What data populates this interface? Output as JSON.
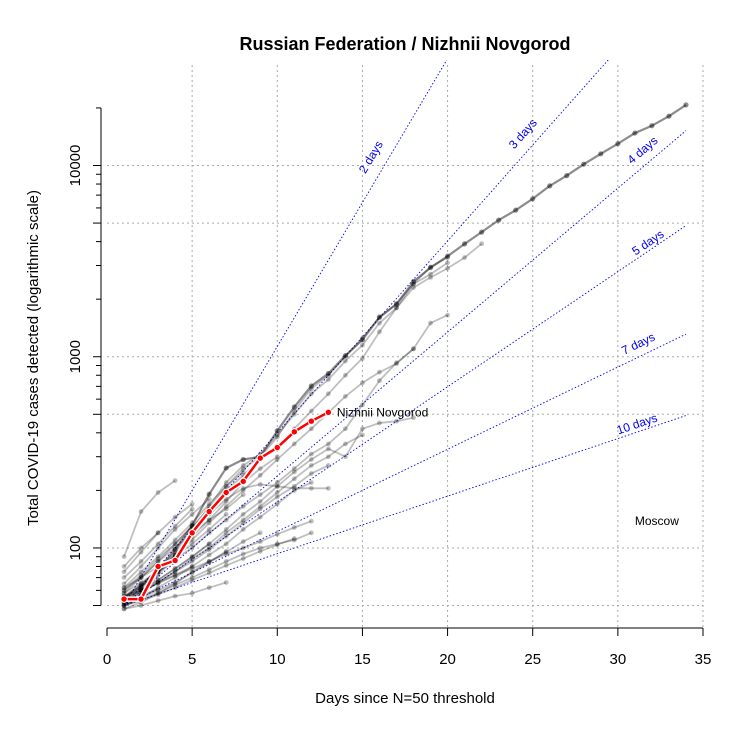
{
  "chart_data": {
    "type": "line",
    "title": "Russian Federation / Nizhnii Novgorod",
    "xlabel": "Days since N=50 threshold",
    "ylabel": "Total COVID-19 cases detected (logarithmic scale)",
    "y_scale": "log",
    "xlim": [
      0,
      35
    ],
    "ylim": [
      42,
      28000
    ],
    "x_ticks": [
      0,
      5,
      10,
      15,
      20,
      25,
      30,
      35
    ],
    "y_ticks": [
      100,
      1000,
      10000
    ],
    "grid": true,
    "highlight_color": "#ff0000",
    "other_color": "#000000",
    "reference_color": "#0000ee",
    "highlight": {
      "name": "Nizhnii Novgorod",
      "x": [
        1,
        2,
        3,
        4,
        5,
        6,
        7,
        8,
        9,
        10,
        11,
        12,
        13
      ],
      "y": [
        54,
        54,
        80,
        86,
        120,
        155,
        195,
        223,
        295,
        335,
        405,
        460,
        512
      ]
    },
    "moscow": {
      "name": "Moscow",
      "x": [
        1,
        2,
        3,
        4,
        5,
        6,
        7,
        8,
        9,
        10,
        11,
        12,
        13,
        14,
        15,
        16,
        17,
        18,
        19,
        20,
        21,
        22,
        23,
        24,
        25,
        26,
        27,
        28,
        29,
        30,
        31,
        32,
        33,
        34
      ],
      "y": [
        55,
        63,
        77,
        98,
        131,
        191,
        262,
        290,
        300,
        410,
        546,
        703,
        817,
        1014,
        1226,
        1613,
        1880,
        2475,
        2923,
        3357,
        3893,
        4484,
        5181,
        5841,
        6698,
        7822,
        8852,
        10158,
        11513,
        13002,
        14776,
        16146,
        18105,
        20754
      ]
    },
    "others": [
      {
        "x": [
          1,
          2,
          3,
          4,
          5,
          6,
          7,
          8,
          9,
          10,
          11,
          12,
          13,
          14,
          15,
          16,
          17,
          18,
          19,
          20
        ],
        "y": [
          52,
          60,
          72,
          90,
          120,
          160,
          210,
          260,
          300,
          380,
          520,
          680,
          800,
          1000,
          1250,
          1600,
          1900,
          2400,
          2700,
          3100
        ]
      },
      {
        "x": [
          1,
          2,
          3,
          4,
          5,
          6,
          7,
          8,
          9,
          10,
          11,
          12,
          13,
          14,
          15,
          16,
          17,
          18,
          19,
          20,
          21,
          22
        ],
        "y": [
          56,
          64,
          78,
          95,
          125,
          165,
          220,
          270,
          310,
          390,
          500,
          640,
          760,
          950,
          1150,
          1500,
          1800,
          2300,
          2600,
          2900,
          3300,
          3900
        ]
      },
      {
        "x": [
          1,
          2,
          3,
          4,
          5,
          6,
          7,
          8,
          9,
          10,
          11,
          12,
          13,
          14,
          15,
          16,
          17,
          18,
          19,
          20
        ],
        "y": [
          60,
          70,
          85,
          105,
          130,
          160,
          200,
          240,
          290,
          340,
          420,
          520,
          640,
          800,
          980,
          1350,
          1800,
          2400,
          2950,
          3300
        ]
      },
      {
        "x": [
          1,
          2,
          3,
          4,
          5,
          6,
          7,
          8,
          9,
          10,
          11,
          12,
          13,
          14,
          15,
          16,
          17,
          18,
          19,
          20
        ],
        "y": [
          54,
          62,
          75,
          92,
          110,
          135,
          165,
          200,
          240,
          290,
          350,
          420,
          510,
          620,
          730,
          830,
          920,
          1100,
          1500,
          1650
        ]
      },
      {
        "x": [
          1,
          2,
          3,
          4,
          5,
          6,
          7,
          8,
          9,
          10,
          11,
          12,
          13,
          14,
          15,
          16,
          17,
          18
        ],
        "y": [
          55,
          65,
          75,
          88,
          100,
          120,
          140,
          165,
          190,
          220,
          260,
          310,
          350,
          420,
          560,
          750,
          930,
          1100
        ]
      },
      {
        "x": [
          1,
          2,
          3,
          4,
          5,
          6,
          7,
          8,
          9,
          10,
          11,
          12,
          13,
          14,
          15,
          16,
          17,
          18
        ],
        "y": [
          52,
          60,
          68,
          78,
          90,
          105,
          125,
          150,
          175,
          210,
          250,
          290,
          330,
          300,
          420,
          450,
          460,
          480
        ]
      },
      {
        "x": [
          1,
          2,
          3,
          4,
          5,
          6,
          7,
          8,
          9,
          10,
          11,
          12,
          13,
          14,
          15
        ],
        "y": [
          53,
          58,
          66,
          75,
          88,
          100,
          120,
          140,
          165,
          195,
          230,
          270,
          300,
          350,
          390
        ]
      },
      {
        "x": [
          1,
          2,
          3,
          4,
          5,
          6,
          7,
          8,
          9,
          10,
          11,
          12,
          13
        ],
        "y": [
          60,
          72,
          88,
          105,
          130,
          150,
          180,
          205,
          215,
          210,
          205,
          205,
          205
        ]
      },
      {
        "x": [
          1,
          2,
          3,
          4,
          5,
          6,
          7,
          8,
          9,
          10,
          11,
          12,
          13
        ],
        "y": [
          52,
          58,
          66,
          75,
          85,
          98,
          115,
          135,
          160,
          185,
          210,
          245,
          270
        ]
      },
      {
        "x": [
          1,
          2,
          3,
          4,
          5,
          6,
          7,
          8,
          9,
          10,
          11,
          12
        ],
        "y": [
          50,
          55,
          62,
          70,
          80,
          92,
          105,
          125,
          145,
          170,
          200,
          220
        ]
      },
      {
        "x": [
          1,
          2,
          3,
          4,
          5,
          6,
          7,
          8,
          9,
          10,
          11,
          12
        ],
        "y": [
          55,
          60,
          66,
          72,
          78,
          85,
          93,
          100,
          108,
          118,
          128,
          138
        ]
      },
      {
        "x": [
          1,
          2,
          3,
          4,
          5,
          6,
          7,
          8,
          9,
          10,
          11,
          12
        ],
        "y": [
          50,
          54,
          58,
          64,
          70,
          77,
          85,
          93,
          100,
          105,
          110,
          120
        ]
      },
      {
        "x": [
          1,
          2,
          3,
          4,
          5,
          6,
          7,
          8,
          9,
          10,
          11
        ],
        "y": [
          50,
          53,
          57,
          62,
          68,
          74,
          81,
          88,
          96,
          104,
          112
        ]
      },
      {
        "x": [
          1,
          2,
          3,
          4,
          5,
          6,
          7,
          8,
          9,
          10
        ],
        "y": [
          55,
          63,
          75,
          92,
          115,
          140,
          175,
          220,
          260,
          300
        ]
      },
      {
        "x": [
          1,
          2,
          3,
          4,
          5,
          6,
          7,
          8,
          9
        ],
        "y": [
          48,
          52,
          58,
          65,
          75,
          85,
          95,
          108,
          120
        ]
      },
      {
        "x": [
          1,
          2,
          3,
          4,
          5,
          6,
          7,
          8
        ],
        "y": [
          62,
          75,
          90,
          110,
          135,
          170,
          210,
          250
        ]
      },
      {
        "x": [
          1,
          2,
          3,
          4,
          5,
          6,
          7,
          8
        ],
        "y": [
          58,
          70,
          85,
          100,
          120,
          140,
          160,
          190
        ]
      },
      {
        "x": [
          1,
          2,
          3,
          4,
          5,
          6,
          7
        ],
        "y": [
          52,
          62,
          75,
          90,
          105,
          125,
          150
        ]
      },
      {
        "x": [
          1,
          2,
          3,
          4,
          5,
          6,
          7
        ],
        "y": [
          50,
          55,
          60,
          66,
          74,
          84,
          96
        ]
      },
      {
        "x": [
          1,
          2,
          3,
          4,
          5,
          6
        ],
        "y": [
          54,
          60,
          68,
          78,
          90,
          105
        ]
      },
      {
        "x": [
          1,
          2,
          3,
          4,
          5,
          6
        ],
        "y": [
          65,
          80,
          100,
          125,
          150,
          180
        ]
      },
      {
        "x": [
          1,
          2,
          3,
          4,
          5
        ],
        "y": [
          70,
          85,
          105,
          130,
          160
        ]
      },
      {
        "x": [
          1,
          2,
          3,
          4,
          5
        ],
        "y": [
          56,
          60,
          65,
          72,
          80
        ]
      },
      {
        "x": [
          1,
          2,
          3,
          4,
          5
        ],
        "y": [
          75,
          95,
          120,
          145,
          170
        ]
      },
      {
        "x": [
          1,
          2,
          3,
          4
        ],
        "y": [
          90,
          155,
          195,
          225
        ]
      },
      {
        "x": [
          1,
          2,
          3,
          4
        ],
        "y": [
          58,
          66,
          75,
          85
        ]
      },
      {
        "x": [
          1,
          2,
          3,
          4
        ],
        "y": [
          62,
          70,
          80,
          92
        ]
      },
      {
        "x": [
          1,
          2,
          3
        ],
        "y": [
          51,
          56,
          61
        ]
      },
      {
        "x": [
          1,
          2,
          3
        ],
        "y": [
          80,
          100,
          120
        ]
      },
      {
        "x": [
          1,
          2,
          3,
          4,
          5,
          6,
          7
        ],
        "y": [
          48,
          50,
          53,
          56,
          58,
          62,
          66
        ]
      }
    ],
    "reference_lines": [
      {
        "label": "2 days",
        "doubling_days": 2,
        "label_x": 15.7,
        "label_y": 10800
      },
      {
        "label": "3 days",
        "doubling_days": 3,
        "label_x": 24.6,
        "label_y": 14200
      },
      {
        "label": "4 days",
        "doubling_days": 4,
        "label_x": 31.6,
        "label_y": 11600
      },
      {
        "label": "5 days",
        "doubling_days": 5,
        "label_x": 31.9,
        "label_y": 3800
      },
      {
        "label": "7 days",
        "doubling_days": 7,
        "label_x": 31.3,
        "label_y": 1120
      },
      {
        "label": "10 days",
        "doubling_days": 10,
        "label_x": 31.2,
        "label_y": 425
      }
    ],
    "reference_start": {
      "x": 1,
      "y": 50
    },
    "annotations": [
      {
        "text": "Nizhnii Novgorod",
        "x": 13.5,
        "y": 512
      },
      {
        "text": "Moscow",
        "x": 31.0,
        "y": 138
      }
    ]
  }
}
